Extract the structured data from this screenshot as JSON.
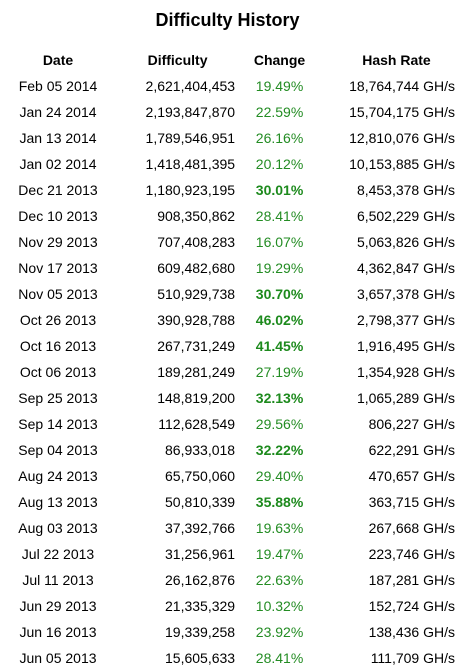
{
  "title": "Difficulty History",
  "columns": {
    "date": "Date",
    "difficulty": "Difficulty",
    "change": "Change",
    "hash_rate": "Hash Rate"
  },
  "rows": [
    {
      "date": "Feb 05 2014",
      "difficulty": "2,621,404,453",
      "change": "19.49%",
      "hash_rate": "18,764,744 GH/s",
      "bold": false
    },
    {
      "date": "Jan 24 2014",
      "difficulty": "2,193,847,870",
      "change": "22.59%",
      "hash_rate": "15,704,175 GH/s",
      "bold": false
    },
    {
      "date": "Jan 13 2014",
      "difficulty": "1,789,546,951",
      "change": "26.16%",
      "hash_rate": "12,810,076 GH/s",
      "bold": false
    },
    {
      "date": "Jan 02 2014",
      "difficulty": "1,418,481,395",
      "change": "20.12%",
      "hash_rate": "10,153,885 GH/s",
      "bold": false
    },
    {
      "date": "Dec 21 2013",
      "difficulty": "1,180,923,195",
      "change": "30.01%",
      "hash_rate": "8,453,378 GH/s",
      "bold": true
    },
    {
      "date": "Dec 10 2013",
      "difficulty": "908,350,862",
      "change": "28.41%",
      "hash_rate": "6,502,229 GH/s",
      "bold": false
    },
    {
      "date": "Nov 29 2013",
      "difficulty": "707,408,283",
      "change": "16.07%",
      "hash_rate": "5,063,826 GH/s",
      "bold": false
    },
    {
      "date": "Nov 17 2013",
      "difficulty": "609,482,680",
      "change": "19.29%",
      "hash_rate": "4,362,847 GH/s",
      "bold": false
    },
    {
      "date": "Nov 05 2013",
      "difficulty": "510,929,738",
      "change": "30.70%",
      "hash_rate": "3,657,378 GH/s",
      "bold": true
    },
    {
      "date": "Oct 26 2013",
      "difficulty": "390,928,788",
      "change": "46.02%",
      "hash_rate": "2,798,377 GH/s",
      "bold": true
    },
    {
      "date": "Oct 16 2013",
      "difficulty": "267,731,249",
      "change": "41.45%",
      "hash_rate": "1,916,495 GH/s",
      "bold": true
    },
    {
      "date": "Oct 06 2013",
      "difficulty": "189,281,249",
      "change": "27.19%",
      "hash_rate": "1,354,928 GH/s",
      "bold": false
    },
    {
      "date": "Sep 25 2013",
      "difficulty": "148,819,200",
      "change": "32.13%",
      "hash_rate": "1,065,289 GH/s",
      "bold": true
    },
    {
      "date": "Sep 14 2013",
      "difficulty": "112,628,549",
      "change": "29.56%",
      "hash_rate": "806,227 GH/s",
      "bold": false
    },
    {
      "date": "Sep 04 2013",
      "difficulty": "86,933,018",
      "change": "32.22%",
      "hash_rate": "622,291 GH/s",
      "bold": true
    },
    {
      "date": "Aug 24 2013",
      "difficulty": "65,750,060",
      "change": "29.40%",
      "hash_rate": "470,657 GH/s",
      "bold": false
    },
    {
      "date": "Aug 13 2013",
      "difficulty": "50,810,339",
      "change": "35.88%",
      "hash_rate": "363,715 GH/s",
      "bold": true
    },
    {
      "date": "Aug 03 2013",
      "difficulty": "37,392,766",
      "change": "19.63%",
      "hash_rate": "267,668 GH/s",
      "bold": false
    },
    {
      "date": "Jul 22 2013",
      "difficulty": "31,256,961",
      "change": "19.47%",
      "hash_rate": "223,746 GH/s",
      "bold": false
    },
    {
      "date": "Jul 11 2013",
      "difficulty": "26,162,876",
      "change": "22.63%",
      "hash_rate": "187,281 GH/s",
      "bold": false
    },
    {
      "date": "Jun 29 2013",
      "difficulty": "21,335,329",
      "change": "10.32%",
      "hash_rate": "152,724 GH/s",
      "bold": false
    },
    {
      "date": "Jun 16 2013",
      "difficulty": "19,339,258",
      "change": "23.92%",
      "hash_rate": "138,436 GH/s",
      "bold": false
    },
    {
      "date": "Jun 05 2013",
      "difficulty": "15,605,633",
      "change": "28.41%",
      "hash_rate": "111,709 GH/s",
      "bold": false
    }
  ],
  "colors": {
    "change_text": "#238c23",
    "change_bold_text": "#1d8a1d"
  }
}
